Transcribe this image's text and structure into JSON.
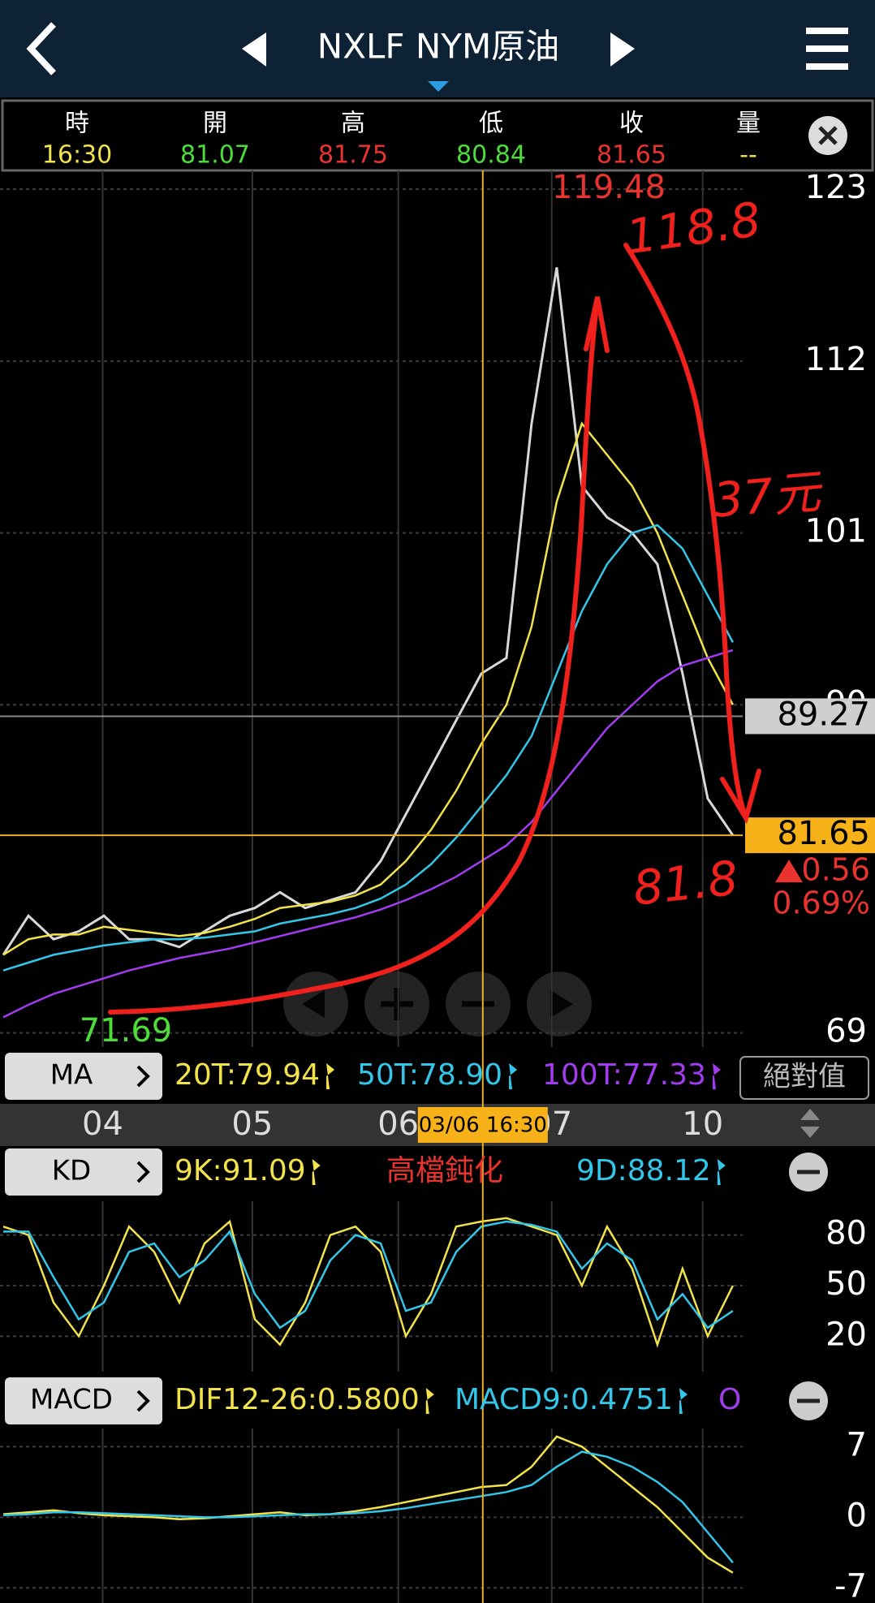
{
  "header": {
    "title": "NXLF NYM原油"
  },
  "quote": {
    "labels": [
      "時",
      "開",
      "高",
      "低",
      "收",
      "量"
    ],
    "values": [
      "16:30",
      "81.07",
      "81.75",
      "80.84",
      "81.65",
      "--"
    ],
    "colors": [
      "#f2e24b",
      "#4ddc3a",
      "#e8332e",
      "#4ddc3a",
      "#e8332e",
      "#f2e24b"
    ]
  },
  "chart_data": [
    {
      "type": "line",
      "indicator": "MA",
      "mode_button": "絕對值",
      "x": [
        0,
        1,
        2,
        3,
        4,
        5,
        6,
        7,
        8,
        9,
        10,
        11,
        12,
        13,
        14,
        15,
        16,
        17,
        18,
        19,
        20,
        21,
        22,
        23,
        24,
        25,
        26,
        27,
        28,
        29
      ],
      "xlim": [
        -0.13,
        29.39
      ],
      "xticks": [
        {
          "value": 3.95,
          "label": "04"
        },
        {
          "value": 9.9,
          "label": "05"
        },
        {
          "value": 15.7,
          "label": "06"
        },
        {
          "value": 21.8,
          "label": "07"
        },
        {
          "value": 27.8,
          "label": "10"
        }
      ],
      "ylim": [
        68.1,
        124.2
      ],
      "yticks": [
        69,
        90,
        101,
        112,
        123
      ],
      "grid": true,
      "series": [
        {
          "color": "#d8d8d8",
          "values": [
            74,
            76.5,
            75,
            75.5,
            76.5,
            75,
            75,
            74.5,
            75.5,
            76.5,
            77,
            78,
            77,
            77.5,
            78,
            80,
            83,
            86,
            89,
            92,
            93,
            108,
            118,
            104,
            102,
            101,
            99,
            92,
            84,
            81.65
          ]
        },
        {
          "name": "20T:79.94",
          "color": "#f2e24b",
          "values": [
            74,
            75,
            75.3,
            75.3,
            75.8,
            75.6,
            75.4,
            75.2,
            75.4,
            75.8,
            76.3,
            77,
            77.2,
            77.4,
            77.8,
            78.5,
            80,
            82,
            84.5,
            87.5,
            90,
            95,
            103,
            108,
            106,
            104,
            101,
            97,
            93,
            90
          ]
        },
        {
          "name": "50T:78.90",
          "color": "#33c6e8",
          "values": [
            73,
            73.5,
            74,
            74.3,
            74.6,
            74.8,
            75,
            75,
            75.1,
            75.3,
            75.5,
            76,
            76.3,
            76.6,
            77,
            77.6,
            78.5,
            79.8,
            81.5,
            83.5,
            85.5,
            88,
            92,
            96,
            99,
            101,
            101.5,
            100,
            97,
            94
          ]
        },
        {
          "name": "100T:77.33",
          "color": "#a23cf0",
          "values": [
            70,
            70.8,
            71.5,
            72,
            72.5,
            73,
            73.4,
            73.8,
            74.1,
            74.4,
            74.8,
            75.2,
            75.6,
            76,
            76.4,
            76.9,
            77.5,
            78.2,
            79,
            80,
            81,
            82.5,
            84.5,
            86.5,
            88.5,
            90,
            91.5,
            92.5,
            93,
            93.5
          ]
        }
      ],
      "high": 119.48,
      "low": 71.69,
      "cursor_price": 89.27,
      "close": 81.65,
      "change": 0.56,
      "change_pct": "0.69%",
      "crosshair": {
        "x": 19.06,
        "label": "03/06 16:30"
      },
      "annotations": [
        "118.8",
        "37元",
        "81.8"
      ]
    },
    {
      "type": "line",
      "indicator": "KD",
      "status": "高檔鈍化",
      "ylim": [
        -1,
        100
      ],
      "yticks": [
        20,
        50,
        80
      ],
      "grid": true,
      "series": [
        {
          "name": "9K:91.09",
          "color": "#f2e24b",
          "values": [
            85,
            80,
            40,
            20,
            50,
            85,
            70,
            40,
            75,
            88,
            30,
            15,
            40,
            80,
            85,
            70,
            20,
            45,
            85,
            88,
            90,
            85,
            80,
            50,
            85,
            60,
            15,
            60,
            20,
            50
          ]
        },
        {
          "name": "9D:88.12",
          "color": "#33c6e8",
          "values": [
            82,
            82,
            55,
            30,
            40,
            70,
            75,
            55,
            65,
            82,
            45,
            25,
            35,
            65,
            80,
            75,
            35,
            40,
            70,
            85,
            88,
            86,
            82,
            60,
            75,
            65,
            30,
            45,
            25,
            35
          ]
        }
      ]
    },
    {
      "type": "line",
      "indicator": "MACD",
      "legend_overflow": "O",
      "ylim": [
        -8.5,
        8.8
      ],
      "yticks": [
        -7,
        0,
        7
      ],
      "grid": true,
      "series": [
        {
          "name": "DIF12-26:0.5800",
          "color": "#f2e24b",
          "values": [
            0.3,
            0.5,
            0.7,
            0.4,
            0.2,
            0.1,
            0,
            -0.2,
            -0.1,
            0.1,
            0.3,
            0.5,
            0.2,
            0.3,
            0.6,
            1,
            1.5,
            2,
            2.5,
            3,
            3.2,
            5,
            8,
            7,
            5,
            3,
            1,
            -1.5,
            -4,
            -5.5
          ]
        },
        {
          "name": "MACD9:0.4751",
          "color": "#33c6e8",
          "values": [
            0.2,
            0.3,
            0.5,
            0.5,
            0.4,
            0.3,
            0.2,
            0.1,
            0,
            0,
            0.1,
            0.2,
            0.3,
            0.3,
            0.4,
            0.6,
            0.9,
            1.3,
            1.7,
            2.1,
            2.5,
            3.2,
            5,
            6.5,
            6,
            5,
            3.5,
            1.5,
            -1.5,
            -4.5
          ]
        }
      ]
    }
  ]
}
